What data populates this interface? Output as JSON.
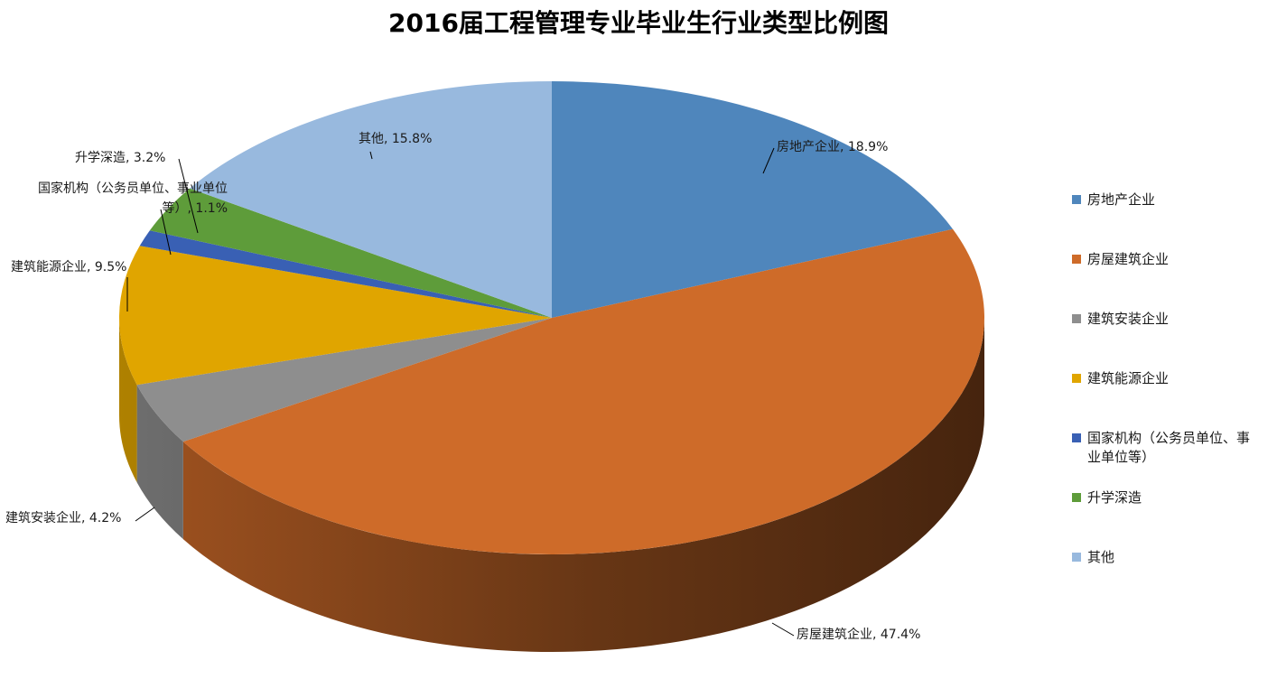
{
  "chart_data": {
    "type": "pie",
    "title": "2016届工程管理专业毕业生行业类型比例图",
    "unit": "%",
    "legend_position": "right",
    "slices": [
      {
        "label": "房地产企业",
        "value": 18.9,
        "data_label": "房地产企业, 18.9%",
        "legend_lines": [
          "房地产企业"
        ],
        "color": "#4F86BC"
      },
      {
        "label": "房屋建筑企业",
        "value": 47.4,
        "data_label": "房屋建筑企业, 47.4%",
        "legend_lines": [
          "房屋建筑企业"
        ],
        "color": "#CE6B29"
      },
      {
        "label": "建筑安装企业",
        "value": 4.2,
        "data_label": "建筑安装企业, 4.2%",
        "legend_lines": [
          "建筑安装企业"
        ],
        "color": "#8E8E8E"
      },
      {
        "label": "建筑能源企业",
        "value": 9.5,
        "data_label": "建筑能源企业, 9.5%",
        "legend_lines": [
          "建筑能源企业"
        ],
        "color": "#E0A500"
      },
      {
        "label": "国家机构（公务员单位、事业单位等）",
        "value": 1.1,
        "data_label": [
          "国家机构（公务员单位、事业单位",
          "等）, 1.1%"
        ],
        "legend_lines": [
          "国家机构（公务员单位、事",
          "业单位等）"
        ],
        "color": "#3960B4"
      },
      {
        "label": "升学深造",
        "value": 3.2,
        "data_label": "升学深造, 3.2%",
        "legend_lines": [
          "升学深造"
        ],
        "color": "#5E9C3A"
      },
      {
        "label": "其他",
        "value": 15.8,
        "data_label": "其他, 15.8%",
        "legend_lines": [
          "其他"
        ],
        "color": "#98B9DE"
      }
    ]
  }
}
